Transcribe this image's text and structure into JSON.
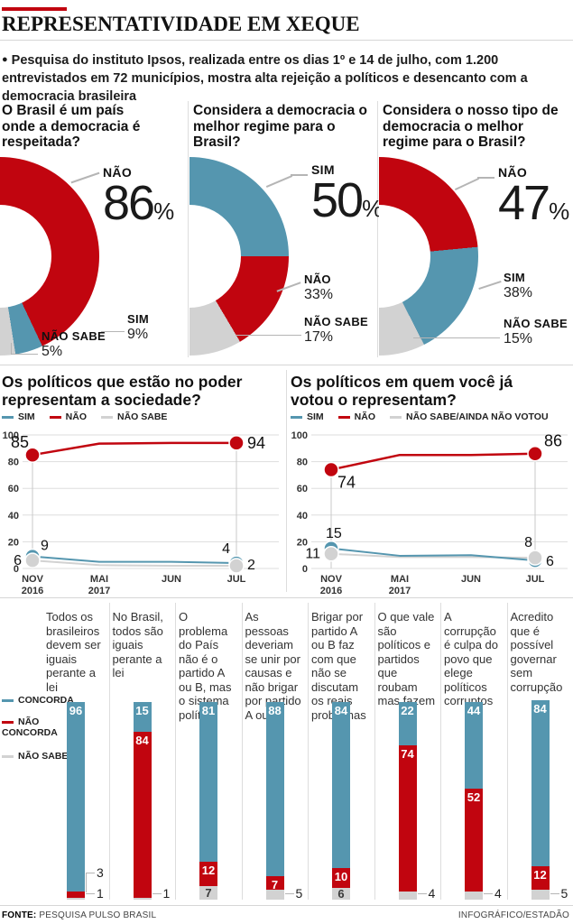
{
  "percent_sign": "%",
  "header": {
    "title": "REPRESENTATIVIDADE EM XEQUE",
    "intro_bullet": "●",
    "intro": "Pesquisa do instituto Ipsos, realizada entre os dias 1º e 14 de julho, com 1.200 entrevistados em 72 municípios, mostra alta rejeição a políticos e desencanto com a democracia brasileira"
  },
  "colors": {
    "sim": "#5596af",
    "nao": "#c1050f",
    "nao_sabe": "#d2d2d2",
    "grid": "#dddddd"
  },
  "chart_data": [
    {
      "type": "pie",
      "variant": "half_donut",
      "question": "O Brasil é um país onde a democracia é respeitada?",
      "slices": [
        {
          "label": "NÃO",
          "value": 86,
          "color": "nao"
        },
        {
          "label": "SIM",
          "value": 9,
          "color": "sim"
        },
        {
          "label": "NÃO SABE",
          "value": 5,
          "color": "nao_sabe"
        }
      ]
    },
    {
      "type": "pie",
      "variant": "half_donut",
      "question": "Considera a democracia o melhor regime para o Brasil?",
      "slices": [
        {
          "label": "SIM",
          "value": 50,
          "color": "sim"
        },
        {
          "label": "NÃO",
          "value": 33,
          "color": "nao"
        },
        {
          "label": "NÃO SABE",
          "value": 17,
          "color": "nao_sabe"
        }
      ]
    },
    {
      "type": "pie",
      "variant": "half_donut",
      "question": "Considera o nosso tipo de democracia o melhor regime para o Brasil?",
      "slices": [
        {
          "label": "NÃO",
          "value": 47,
          "color": "nao"
        },
        {
          "label": "SIM",
          "value": 38,
          "color": "sim"
        },
        {
          "label": "NÃO SABE",
          "value": 15,
          "color": "nao_sabe"
        }
      ]
    },
    {
      "type": "line",
      "question": "Os políticos que estão no poder representam a sociedade?",
      "legend": [
        "SIM",
        "NÃO",
        "NÃO SABE"
      ],
      "x_ticks": [
        [
          "NOV",
          "2016"
        ],
        [
          "MAI",
          "2017"
        ],
        [
          "JUN"
        ],
        [
          "JUL"
        ]
      ],
      "y_ticks": [
        0,
        20,
        40,
        60,
        80,
        100
      ],
      "ylim": [
        0,
        100
      ],
      "series": [
        {
          "name": "SIM",
          "color": "sim",
          "values": [
            9,
            5,
            5,
            4
          ],
          "first_label": "9",
          "last_label": "4"
        },
        {
          "name": "NÃO",
          "color": "nao",
          "values": [
            85,
            93.5,
            94,
            94
          ],
          "first_label": "85",
          "last_label": "94"
        },
        {
          "name": "NÃO SABE",
          "color": "nao_sabe",
          "values": [
            6,
            2.5,
            2,
            2
          ],
          "first_label": "6",
          "last_label": "2"
        }
      ]
    },
    {
      "type": "line",
      "question": "Os políticos em quem você já votou o representam?",
      "legend": [
        "SIM",
        "NÃO",
        "NÃO SABE/AINDA NÃO VOTOU"
      ],
      "x_ticks": [
        [
          "NOV",
          "2016"
        ],
        [
          "MAI",
          "2017"
        ],
        [
          "JUN"
        ],
        [
          "JUL"
        ]
      ],
      "y_ticks": [
        0,
        20,
        40,
        60,
        80,
        100
      ],
      "ylim": [
        0,
        100
      ],
      "series": [
        {
          "name": "SIM",
          "color": "sim",
          "values": [
            15,
            9.5,
            10,
            6
          ],
          "first_label": "15",
          "last_label": "6"
        },
        {
          "name": "NÃO",
          "color": "nao",
          "values": [
            74,
            85,
            85,
            86
          ],
          "first_label": "74",
          "last_label": "86"
        },
        {
          "name": "NÃO SABE/AINDA NÃO VOTOU",
          "color": "nao_sabe",
          "values": [
            11,
            8.5,
            8.5,
            8
          ],
          "first_label": "11",
          "last_label": "8"
        }
      ]
    },
    {
      "type": "bar",
      "stacked": true,
      "legend": [
        {
          "label": "CONCORDA",
          "color": "sim"
        },
        {
          "label": "NÃO CONCORDA",
          "color": "nao"
        },
        {
          "label": "NÃO SABE",
          "color": "nao_sabe"
        }
      ],
      "categories": [
        "Todos os brasileiros devem ser iguais perante a lei",
        "No Brasil, todos são iguais perante a lei",
        "O problema do País não é o partido A ou B, mas o sistema político",
        "As pessoas deveriam se unir por causas e não brigar por partido A ou B",
        "Brigar por partido A ou B faz com que não se discutam os reais problemas",
        "O que vale são políticos e partidos que roubam mas fazem",
        "A corrupção é culpa do povo que elege políticos corruptos",
        "Acredito que é possível governar sem corrupção"
      ],
      "series": [
        {
          "name": "CONCORDA",
          "color": "sim",
          "values": [
            96,
            15,
            81,
            88,
            84,
            22,
            44,
            84
          ]
        },
        {
          "name": "NÃO CONCORDA",
          "color": "nao",
          "values": [
            3,
            84,
            12,
            7,
            10,
            74,
            52,
            12
          ]
        },
        {
          "name": "NÃO SABE",
          "color": "nao_sabe",
          "values": [
            1,
            1,
            7,
            5,
            6,
            4,
            4,
            5
          ]
        }
      ]
    }
  ],
  "footer": {
    "fonte_label": "FONTE:",
    "fonte_value": "PESQUISA PULSO BRASIL",
    "credit": "INFOGRÁFICO/ESTADÃO"
  }
}
